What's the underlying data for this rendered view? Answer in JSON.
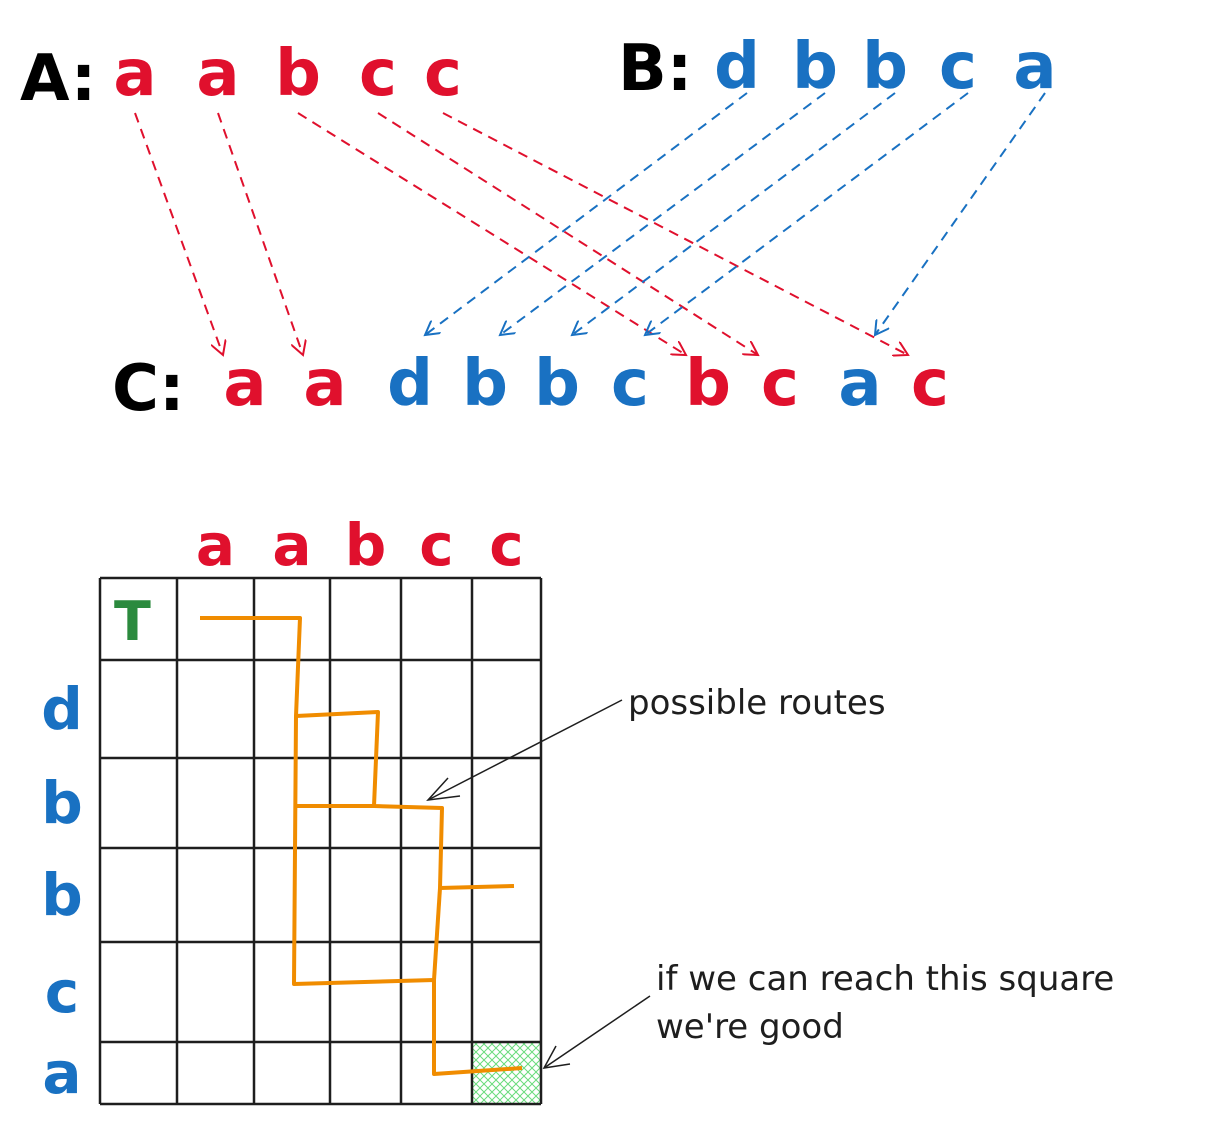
{
  "colors": {
    "red": "#e0102d",
    "blue": "#1971c2",
    "black": "#1e1e1e",
    "green": "#2b8a3e",
    "orange": "#f08c00",
    "cell_fill": "#b2f2bb"
  },
  "strings": {
    "a_label": "A:",
    "b_label": "B:",
    "c_label": "C:",
    "a_letters": [
      "a",
      "a",
      "b",
      "c",
      "c"
    ],
    "b_letters": [
      "d",
      "b",
      "b",
      "c",
      "a"
    ],
    "c_letters": [
      {
        "ch": "a",
        "src": "A"
      },
      {
        "ch": "a",
        "src": "A"
      },
      {
        "ch": "d",
        "src": "B"
      },
      {
        "ch": "b",
        "src": "B"
      },
      {
        "ch": "b",
        "src": "B"
      },
      {
        "ch": "c",
        "src": "B"
      },
      {
        "ch": "b",
        "src": "A"
      },
      {
        "ch": "c",
        "src": "A"
      },
      {
        "ch": "a",
        "src": "B"
      },
      {
        "ch": "c",
        "src": "A"
      }
    ]
  },
  "mappings": {
    "a_to_c": [
      [
        0,
        0
      ],
      [
        1,
        1
      ],
      [
        2,
        6
      ],
      [
        3,
        7
      ],
      [
        4,
        9
      ]
    ],
    "b_to_c": [
      [
        0,
        2
      ],
      [
        1,
        3
      ],
      [
        2,
        4
      ],
      [
        3,
        5
      ],
      [
        4,
        8
      ]
    ]
  },
  "grid": {
    "col_labels": [
      "a",
      "a",
      "b",
      "c",
      "c"
    ],
    "row_labels": [
      "d",
      "b",
      "b",
      "c",
      "a"
    ],
    "start_marker": "T",
    "target_cell": {
      "row": 5,
      "col": 5
    }
  },
  "annotations": {
    "routes_label": "possible routes",
    "target_label_line1": "if we can reach this square",
    "target_label_line2": "we're good"
  }
}
